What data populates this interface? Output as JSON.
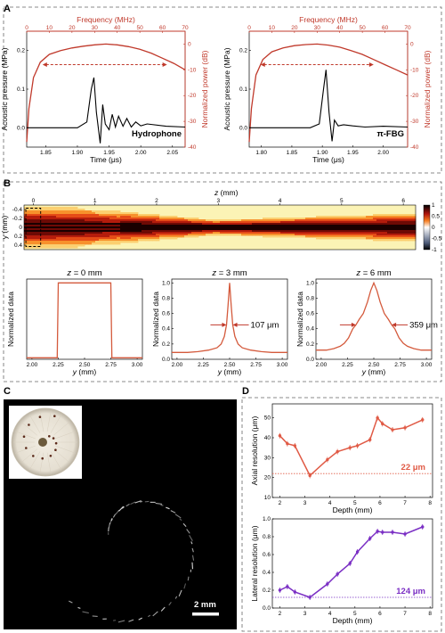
{
  "panels": {
    "A": "A",
    "B": "B",
    "C": "C",
    "D": "D"
  },
  "colors": {
    "red": "#c0392b",
    "purple": "#7a2ec4",
    "curve": "#d45a3c",
    "pt_red": "#e05a45"
  },
  "chart_data": [
    {
      "type": "line",
      "id": "A1",
      "label": "Hydrophone",
      "xlabel": "Time (μs)",
      "ylabel": "Acoustic pressure (MPa)",
      "top_xlabel": "Frequency (MHz)",
      "right_ylabel": "Normalized power (dB)",
      "xlim": [
        1.82,
        2.07
      ],
      "ylim": [
        -0.05,
        0.25
      ],
      "xticks": [
        1.85,
        1.9,
        1.95,
        2.0,
        2.05
      ],
      "yticks": [
        0.0,
        0.1,
        0.2
      ],
      "topxlim": [
        0,
        70
      ],
      "topxticks": [
        0,
        10,
        20,
        30,
        40,
        50,
        60,
        70
      ],
      "rightylim": [
        -40,
        5
      ],
      "rightyticks": [
        0,
        -10,
        -20,
        -30,
        -40
      ],
      "waveform": {
        "t0": 1.925,
        "t1": 2.035,
        "points": [
          [
            1.82,
            0.0
          ],
          [
            1.9,
            0.0
          ],
          [
            1.915,
            0.015
          ],
          [
            1.922,
            0.1
          ],
          [
            1.926,
            0.13
          ],
          [
            1.93,
            0.04
          ],
          [
            1.936,
            -0.04
          ],
          [
            1.94,
            0.06
          ],
          [
            1.944,
            0.01
          ],
          [
            1.95,
            -0.005
          ],
          [
            1.955,
            0.035
          ],
          [
            1.96,
            0.002
          ],
          [
            1.965,
            0.03
          ],
          [
            1.972,
            0.004
          ],
          [
            1.978,
            0.024
          ],
          [
            1.985,
            0.002
          ],
          [
            1.992,
            0.015
          ],
          [
            2.0,
            0.005
          ],
          [
            2.01,
            0.01
          ],
          [
            2.04,
            0.004
          ],
          [
            2.07,
            0.002
          ]
        ]
      },
      "spectrum": {
        "points": [
          [
            0,
            -38
          ],
          [
            1,
            -25
          ],
          [
            3,
            -13
          ],
          [
            6,
            -7
          ],
          [
            10,
            -4
          ],
          [
            15,
            -2.5
          ],
          [
            20,
            -1.5
          ],
          [
            25,
            -0.8
          ],
          [
            30,
            -0.3
          ],
          [
            35,
            0
          ],
          [
            40,
            -0.3
          ],
          [
            45,
            -1
          ],
          [
            50,
            -2
          ],
          [
            55,
            -3.5
          ],
          [
            60,
            -5.5
          ],
          [
            65,
            -7.5
          ],
          [
            70,
            -10
          ]
        ]
      },
      "bandwidth": [
        7,
        62
      ]
    },
    {
      "type": "line",
      "id": "A2",
      "label": "π-FBG",
      "xlabel": "Time (μs)",
      "ylabel": "Acoustic pressure (MPa)",
      "top_xlabel": "Frequency (MHz)",
      "right_ylabel": "Normalized power (dB)",
      "xlim": [
        1.78,
        2.04
      ],
      "ylim": [
        -0.05,
        0.25
      ],
      "xticks": [
        1.8,
        1.85,
        1.9,
        1.95,
        2.0
      ],
      "yticks": [
        0.0,
        0.1,
        0.2
      ],
      "topxlim": [
        0,
        70
      ],
      "topxticks": [
        0,
        10,
        20,
        30,
        40,
        50,
        60,
        70
      ],
      "rightylim": [
        -40,
        5
      ],
      "rightyticks": [
        0,
        -10,
        -20,
        -30,
        -40
      ],
      "waveform": {
        "points": [
          [
            1.78,
            0.0
          ],
          [
            1.88,
            0.0
          ],
          [
            1.895,
            0.01
          ],
          [
            1.902,
            0.1
          ],
          [
            1.906,
            0.15
          ],
          [
            1.911,
            0.04
          ],
          [
            1.916,
            -0.035
          ],
          [
            1.92,
            0.02
          ],
          [
            1.926,
            0.005
          ],
          [
            1.935,
            0.008
          ],
          [
            1.95,
            0.005
          ],
          [
            1.97,
            0.002
          ],
          [
            2.0,
            0.004
          ],
          [
            2.04,
            0.002
          ]
        ]
      },
      "spectrum": {
        "points": [
          [
            0,
            -38
          ],
          [
            1,
            -25
          ],
          [
            3,
            -12
          ],
          [
            6,
            -6
          ],
          [
            10,
            -3
          ],
          [
            15,
            -1.5
          ],
          [
            20,
            -0.6
          ],
          [
            25,
            -0.2
          ],
          [
            30,
            0
          ],
          [
            35,
            -0.4
          ],
          [
            40,
            -1.2
          ],
          [
            45,
            -2.5
          ],
          [
            50,
            -4
          ],
          [
            55,
            -6
          ],
          [
            60,
            -8
          ],
          [
            65,
            -10
          ],
          [
            70,
            -12
          ]
        ]
      },
      "bandwidth": [
        5,
        55
      ]
    },
    {
      "type": "heatmap",
      "id": "B_map",
      "xlabel": "z (mm)",
      "ylabel": "y (mm)",
      "xlim": [
        -0.15,
        6.2
      ],
      "xticks": [
        0,
        1,
        2,
        3,
        4,
        5,
        6
      ],
      "ylim": [
        -0.5,
        0.5
      ],
      "yticks": [
        -0.4,
        -0.2,
        0,
        0.2,
        0.4
      ],
      "colorbar": {
        "ticks": [
          1,
          0.5,
          0,
          -0.5,
          -1
        ],
        "labels": [
          "1",
          "0.5",
          "0",
          "-0.5",
          "-1"
        ]
      }
    },
    {
      "type": "line",
      "id": "B1",
      "title_var": "z",
      "title_val": " = 0 mm",
      "xlabel": "y (mm)",
      "ylabel": "Normalized data",
      "xlim": [
        1.95,
        3.05
      ],
      "ylim": [
        0,
        1.05
      ],
      "xticks": [
        2.0,
        2.25,
        2.5,
        2.75,
        3.0
      ],
      "yticks": [
        0.0,
        0.2,
        0.4,
        0.6,
        0.8,
        1.0
      ],
      "points": [
        [
          1.95,
          0.02
        ],
        [
          2.24,
          0.02
        ],
        [
          2.25,
          1.0
        ],
        [
          2.75,
          1.0
        ],
        [
          2.76,
          0.02
        ],
        [
          3.05,
          0.02
        ]
      ]
    },
    {
      "type": "line",
      "id": "B2",
      "title_var": "z",
      "title_val": " = 3 mm",
      "xlabel": "y (mm)",
      "ylabel": "Normalized data",
      "xlim": [
        1.95,
        3.05
      ],
      "ylim": [
        0,
        1.05
      ],
      "xticks": [
        2.0,
        2.25,
        2.5,
        2.75,
        3.0
      ],
      "yticks": [
        0.0,
        0.2,
        0.4,
        0.6,
        0.8,
        1.0
      ],
      "annotation": "107 μm",
      "points": [
        [
          1.95,
          0.09
        ],
        [
          2.1,
          0.09
        ],
        [
          2.2,
          0.1
        ],
        [
          2.3,
          0.12
        ],
        [
          2.38,
          0.15
        ],
        [
          2.42,
          0.2
        ],
        [
          2.45,
          0.3
        ],
        [
          2.47,
          0.45
        ],
        [
          2.485,
          0.7
        ],
        [
          2.5,
          1.0
        ],
        [
          2.515,
          0.7
        ],
        [
          2.53,
          0.45
        ],
        [
          2.55,
          0.3
        ],
        [
          2.58,
          0.2
        ],
        [
          2.62,
          0.15
        ],
        [
          2.7,
          0.12
        ],
        [
          2.8,
          0.1
        ],
        [
          2.9,
          0.09
        ],
        [
          3.05,
          0.09
        ]
      ]
    },
    {
      "type": "line",
      "id": "B3",
      "title_var": "z",
      "title_val": " = 6 mm",
      "xlabel": "y (mm)",
      "ylabel": "Normalized data",
      "xlim": [
        1.95,
        3.05
      ],
      "ylim": [
        0,
        1.05
      ],
      "xticks": [
        2.0,
        2.25,
        2.5,
        2.75,
        3.0
      ],
      "yticks": [
        0.0,
        0.2,
        0.4,
        0.6,
        0.8,
        1.0
      ],
      "annotation": "359 μm",
      "points": [
        [
          1.95,
          0.12
        ],
        [
          2.05,
          0.12
        ],
        [
          2.12,
          0.14
        ],
        [
          2.18,
          0.17
        ],
        [
          2.22,
          0.21
        ],
        [
          2.26,
          0.28
        ],
        [
          2.3,
          0.4
        ],
        [
          2.33,
          0.45
        ],
        [
          2.36,
          0.52
        ],
        [
          2.4,
          0.6
        ],
        [
          2.44,
          0.75
        ],
        [
          2.47,
          0.9
        ],
        [
          2.5,
          1.0
        ],
        [
          2.53,
          0.9
        ],
        [
          2.56,
          0.75
        ],
        [
          2.6,
          0.6
        ],
        [
          2.64,
          0.52
        ],
        [
          2.67,
          0.45
        ],
        [
          2.7,
          0.4
        ],
        [
          2.74,
          0.28
        ],
        [
          2.78,
          0.21
        ],
        [
          2.82,
          0.17
        ],
        [
          2.88,
          0.14
        ],
        [
          2.95,
          0.12
        ],
        [
          3.05,
          0.12
        ]
      ]
    },
    {
      "type": "line",
      "id": "D1",
      "xlabel": "Depth (mm)",
      "ylabel": "Axial resolution (μm)",
      "xlim": [
        1.7,
        8.1
      ],
      "ylim": [
        10,
        57
      ],
      "xticks": [
        2,
        3,
        4,
        5,
        6,
        7,
        8
      ],
      "yticks": [
        10,
        20,
        30,
        40,
        50
      ],
      "reference": {
        "value": 22,
        "label": "22 μm"
      },
      "x": [
        2.0,
        2.3,
        2.6,
        3.2,
        3.9,
        4.3,
        4.8,
        5.1,
        5.6,
        5.9,
        6.1,
        6.5,
        7.0,
        7.7
      ],
      "y": [
        41,
        37,
        36,
        21,
        29,
        33,
        35,
        36,
        39,
        50,
        47,
        44,
        45,
        49
      ]
    },
    {
      "type": "line",
      "id": "D2",
      "xlabel": "Depth (mm)",
      "ylabel": "Lateral resolution (μm)",
      "xlim": [
        1.7,
        8.1
      ],
      "ylim": [
        0,
        1.0
      ],
      "xticks": [
        2,
        3,
        4,
        5,
        6,
        7,
        8
      ],
      "yticks": [
        0.0,
        0.2,
        0.4,
        0.6,
        0.8,
        1.0
      ],
      "reference": {
        "value": 0.12,
        "label": "124 μm"
      },
      "x": [
        2.0,
        2.3,
        2.6,
        3.2,
        3.9,
        4.3,
        4.8,
        5.1,
        5.6,
        5.9,
        6.1,
        6.5,
        7.0,
        7.7
      ],
      "y": [
        0.2,
        0.24,
        0.18,
        0.12,
        0.27,
        0.38,
        0.5,
        0.63,
        0.78,
        0.86,
        0.85,
        0.85,
        0.83,
        0.91
      ]
    }
  ],
  "scalebar": "2 mm"
}
